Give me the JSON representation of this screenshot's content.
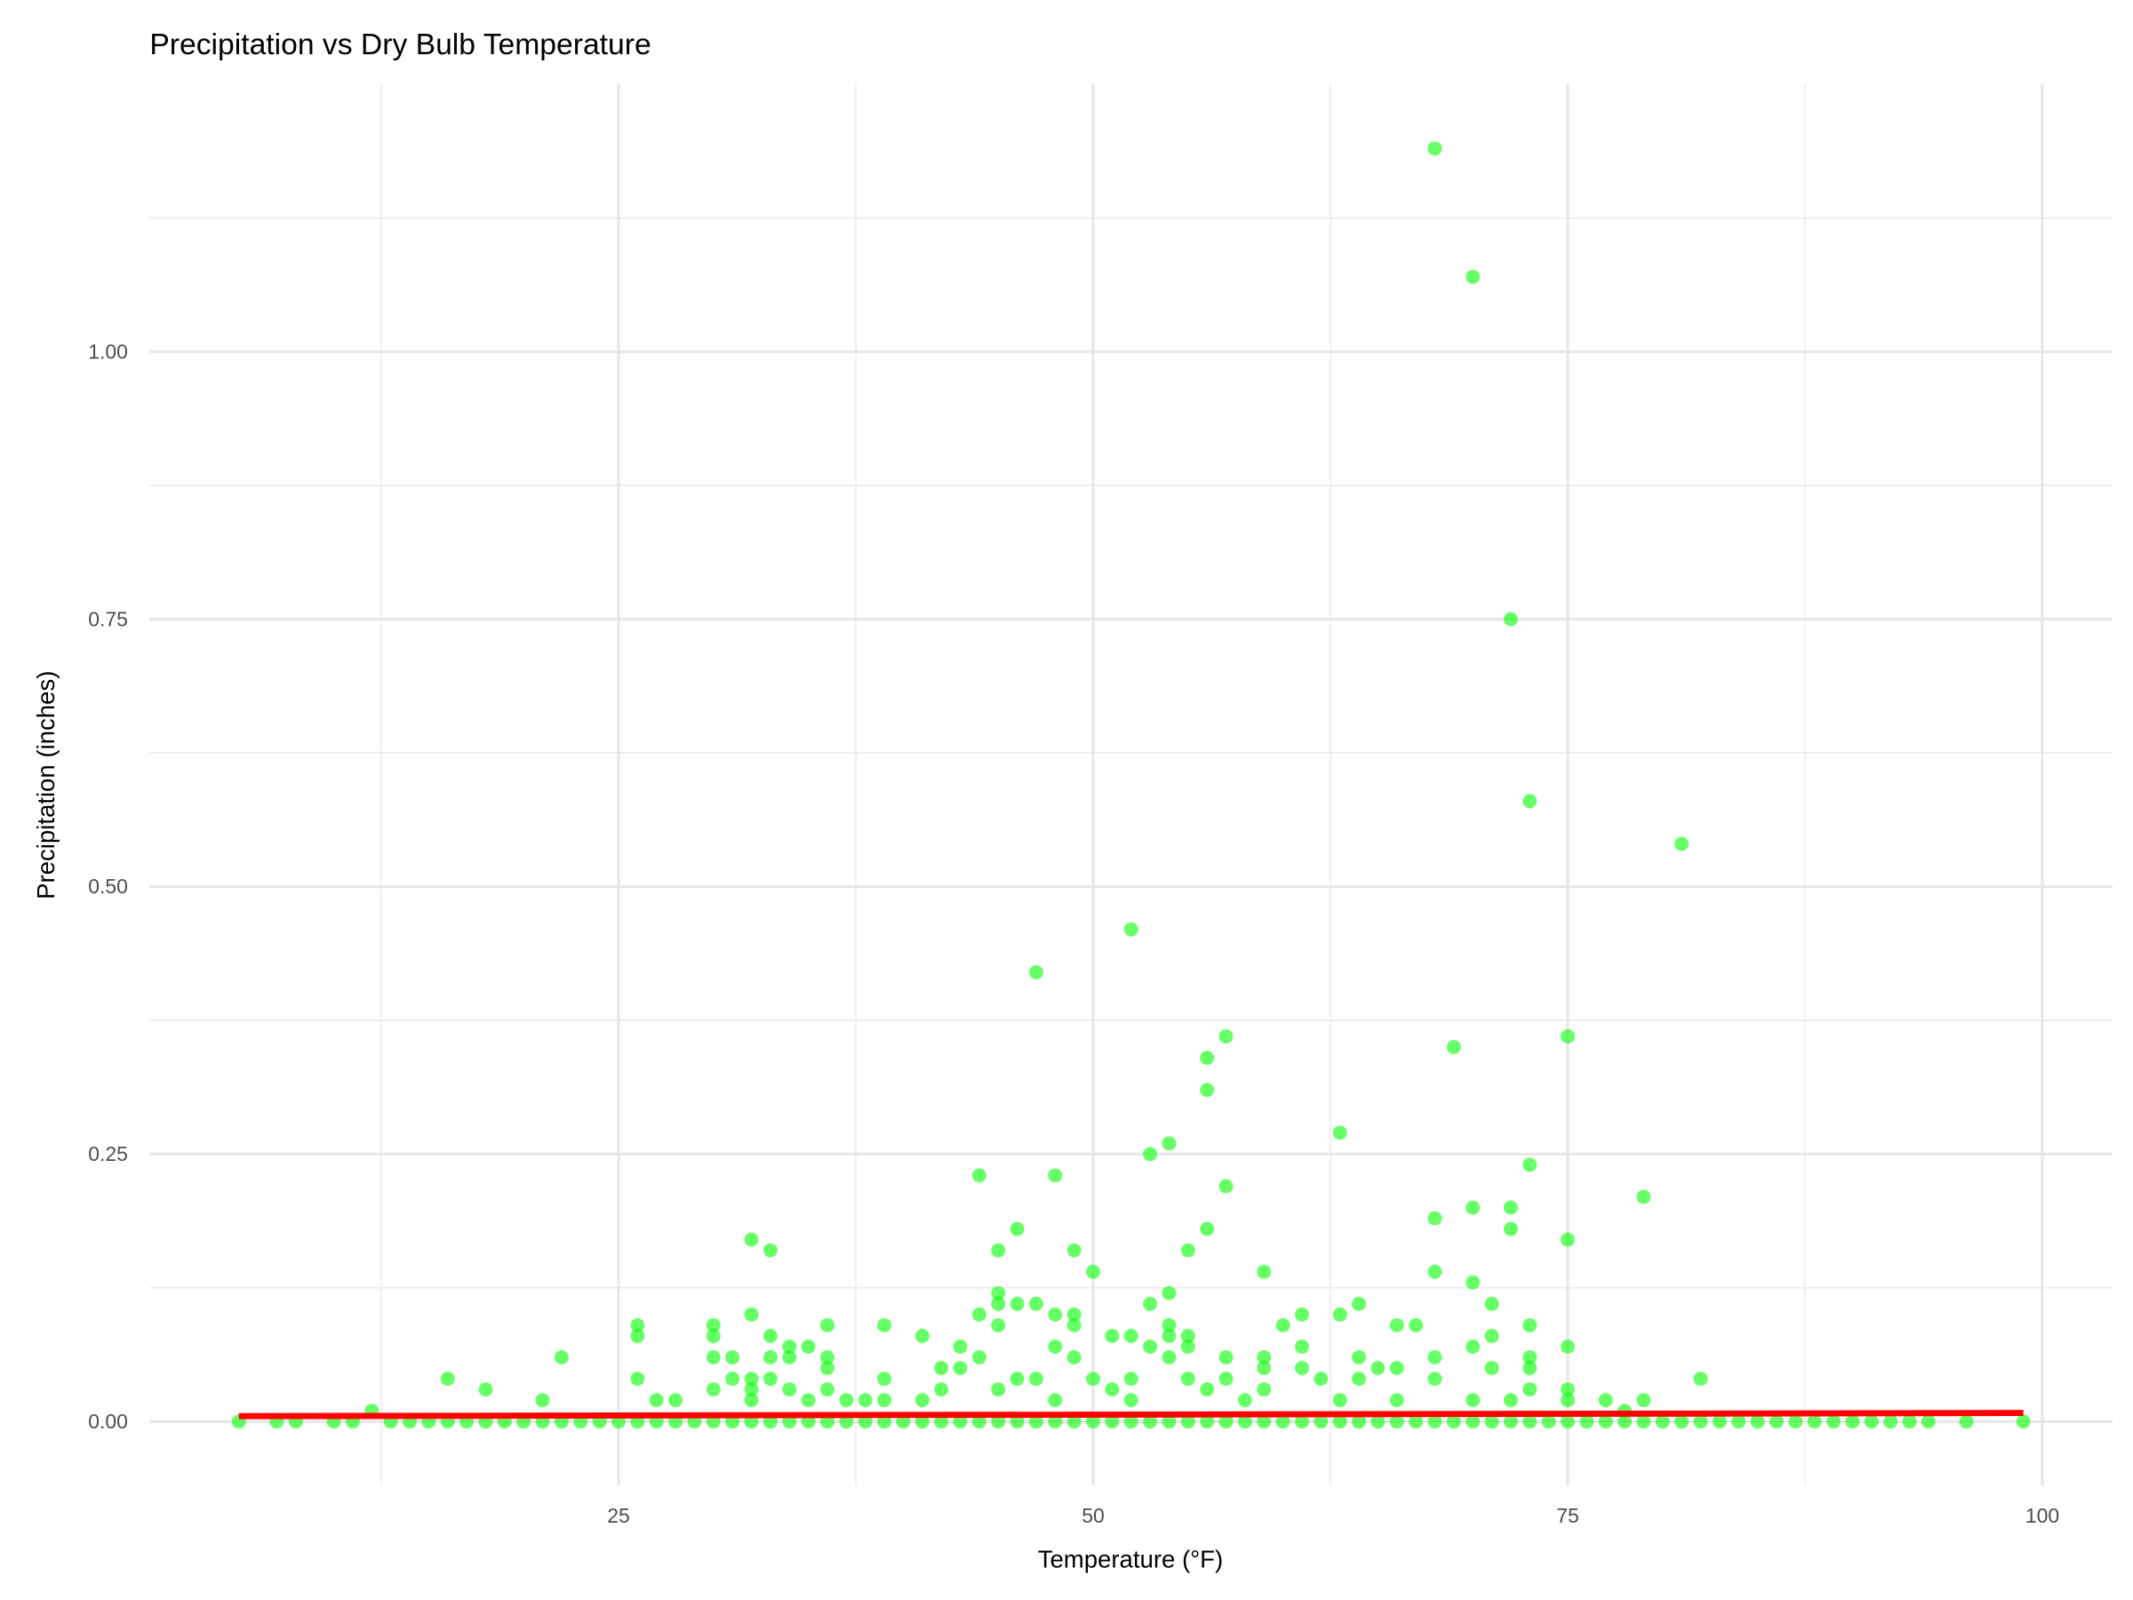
{
  "chart_data": {
    "type": "scatter",
    "title": "Precipitation vs Dry Bulb Temperature",
    "x_label": "Temperature (°F)",
    "y_label": "Precipitation (inches)",
    "xlim": [
      0.3,
      103.7
    ],
    "ylim": [
      -0.06,
      1.25
    ],
    "xticks": [
      25,
      50,
      75,
      100
    ],
    "yticks": [
      {
        "value": 0,
        "label": "0.00"
      },
      {
        "value": 0.25,
        "label": "0.25"
      },
      {
        "value": 0.5,
        "label": "0.50"
      },
      {
        "value": 0.75,
        "label": "0.75"
      },
      {
        "value": 1,
        "label": "1.00"
      }
    ],
    "x_minor_gridlines": [
      12.5,
      37.5,
      62.5,
      87.5
    ],
    "y_minor_gridlines": [
      0.125,
      0.375,
      0.625,
      0.875,
      1.125
    ],
    "grid": true,
    "series": [
      {
        "color": "#00ff00",
        "x": [
          5,
          7,
          8,
          10,
          11,
          13,
          14,
          15,
          16,
          17,
          18,
          19,
          20,
          21,
          22,
          23,
          24,
          25,
          26,
          27,
          28,
          29,
          30,
          31,
          32,
          33,
          34,
          35,
          36,
          37,
          38,
          39,
          40,
          41,
          42,
          43,
          44,
          45,
          46,
          47,
          48,
          49,
          50,
          51,
          52,
          53,
          54,
          55,
          56,
          57,
          58,
          59,
          60,
          61,
          62,
          63,
          64,
          65,
          66,
          67,
          68,
          69,
          70,
          71,
          72,
          73,
          74,
          75,
          76,
          77,
          78,
          79,
          80,
          81,
          82,
          83,
          84,
          85,
          86,
          87,
          88,
          89,
          90,
          91,
          92,
          93,
          94,
          96,
          99,
          12,
          16,
          18,
          21,
          22,
          26,
          26,
          26,
          27,
          28,
          30,
          30,
          30,
          30,
          31,
          31,
          32,
          32,
          32,
          32,
          32,
          33,
          33,
          33,
          33,
          34,
          34,
          34,
          35,
          35,
          36,
          36,
          36,
          36,
          37,
          38,
          39,
          39,
          39,
          41,
          41,
          42,
          42,
          43,
          43,
          44,
          44,
          44,
          45,
          45,
          45,
          45,
          45,
          46,
          46,
          46,
          47,
          47,
          47,
          48,
          48,
          48,
          48,
          49,
          49,
          49,
          49,
          50,
          50,
          51,
          51,
          52,
          52,
          52,
          52,
          53,
          53,
          53,
          54,
          54,
          54,
          54,
          54,
          55,
          55,
          55,
          55,
          56,
          56,
          56,
          56,
          57,
          57,
          57,
          57,
          58,
          59,
          59,
          59,
          59,
          60,
          61,
          61,
          61,
          62,
          63,
          63,
          63,
          64,
          64,
          64,
          65,
          66,
          66,
          66,
          67,
          68,
          68,
          68,
          68,
          68,
          69,
          70,
          70,
          70,
          70,
          70,
          71,
          71,
          71,
          72,
          72,
          72,
          72,
          73,
          73,
          73,
          73,
          73,
          73,
          75,
          75,
          75,
          75,
          75,
          77,
          78,
          79,
          79,
          81,
          82
        ],
        "values": [
          0,
          0,
          0,
          0,
          0,
          0,
          0,
          0,
          0,
          0,
          0,
          0,
          0,
          0,
          0,
          0,
          0,
          0,
          0,
          0,
          0,
          0,
          0,
          0,
          0,
          0,
          0,
          0,
          0,
          0,
          0,
          0,
          0,
          0,
          0,
          0,
          0,
          0,
          0,
          0,
          0,
          0,
          0,
          0,
          0,
          0,
          0,
          0,
          0,
          0,
          0,
          0,
          0,
          0,
          0,
          0,
          0,
          0,
          0,
          0,
          0,
          0,
          0,
          0,
          0,
          0,
          0,
          0,
          0,
          0,
          0,
          0,
          0,
          0,
          0,
          0,
          0,
          0,
          0,
          0,
          0,
          0,
          0,
          0,
          0,
          0,
          0,
          0,
          0,
          0.01,
          0.04,
          0.03,
          0.02,
          0.06,
          0.09,
          0.08,
          0.04,
          0.02,
          0.02,
          0.09,
          0.08,
          0.06,
          0.03,
          0.06,
          0.04,
          0.17,
          0.1,
          0.04,
          0.03,
          0.02,
          0.16,
          0.08,
          0.06,
          0.04,
          0.07,
          0.06,
          0.03,
          0.07,
          0.02,
          0.09,
          0.06,
          0.05,
          0.03,
          0.02,
          0.02,
          0.09,
          0.04,
          0.02,
          0.08,
          0.02,
          0.05,
          0.03,
          0.07,
          0.05,
          0.23,
          0.1,
          0.06,
          0.16,
          0.12,
          0.11,
          0.09,
          0.03,
          0.18,
          0.11,
          0.04,
          0.42,
          0.11,
          0.04,
          0.23,
          0.1,
          0.07,
          0.02,
          0.16,
          0.1,
          0.09,
          0.06,
          0.14,
          0.04,
          0.08,
          0.03,
          0.46,
          0.08,
          0.04,
          0.02,
          0.25,
          0.11,
          0.07,
          0.26,
          0.12,
          0.09,
          0.08,
          0.06,
          0.16,
          0.08,
          0.07,
          0.04,
          0.34,
          0.31,
          0.18,
          0.03,
          0.36,
          0.22,
          0.06,
          0.04,
          0.02,
          0.14,
          0.06,
          0.05,
          0.03,
          0.09,
          0.1,
          0.07,
          0.05,
          0.04,
          0.27,
          0.1,
          0.02,
          0.11,
          0.06,
          0.04,
          0.05,
          0.09,
          0.05,
          0.02,
          0.09,
          1.19,
          0.19,
          0.14,
          0.06,
          0.04,
          0.35,
          1.07,
          0.2,
          0.13,
          0.07,
          0.02,
          0.11,
          0.08,
          0.05,
          0.75,
          0.2,
          0.18,
          0.02,
          0.58,
          0.24,
          0.09,
          0.06,
          0.05,
          0.03,
          0.36,
          0.17,
          0.07,
          0.03,
          0.02,
          0.02,
          0.01,
          0.21,
          0.02,
          0.54,
          0.04
        ]
      }
    ],
    "trend_line": {
      "color": "#ff0000",
      "x": [
        5,
        99
      ],
      "values": [
        0.005,
        0.008
      ]
    }
  }
}
